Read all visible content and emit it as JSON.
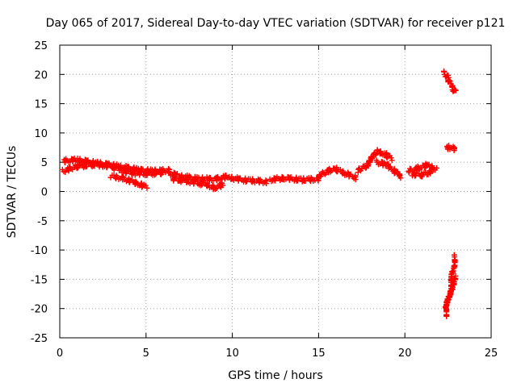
{
  "chart_data": {
    "type": "scatter",
    "title": "Day 065 of 2017, Sidereal Day-to-day VTEC variation (SDTVAR) for receiver p121",
    "xlabel": "GPS time / hours",
    "ylabel": "SDTVAR / TECUs",
    "xlim": [
      0,
      25
    ],
    "ylim": [
      -25,
      25
    ],
    "xticks": [
      "0",
      "5",
      "10",
      "15",
      "20",
      "25"
    ],
    "yticks": [
      "25",
      "20",
      "15",
      "10",
      "5",
      "0",
      "-5",
      "-10",
      "-15",
      "-20",
      "-25"
    ],
    "grid": true,
    "legend": "none",
    "marker": "+",
    "series": [
      {
        "color": "#ff0000",
        "segments": [
          {
            "x": [
              0.2,
              1.0,
              2.0,
              3.0,
              4.0,
              4.8,
              5.5,
              6.3
            ],
            "y": [
              5.2,
              5.4,
              4.9,
              4.5,
              4.0,
              3.6,
              3.5,
              3.6
            ]
          },
          {
            "x": [
              0.2,
              1.0,
              2.0,
              3.0,
              4.0,
              5.0,
              6.0
            ],
            "y": [
              3.5,
              4.3,
              4.6,
              4.3,
              3.2,
              3.0,
              3.2
            ]
          },
          {
            "x": [
              3.0,
              3.6,
              4.3,
              5.0
            ],
            "y": [
              2.6,
              2.3,
              1.6,
              0.8
            ]
          },
          {
            "x": [
              6.3,
              7.0,
              8.0,
              9.0,
              9.8
            ],
            "y": [
              3.2,
              2.6,
              2.2,
              2.1,
              2.6
            ]
          },
          {
            "x": [
              6.5,
              7.5,
              8.5,
              9.0,
              9.5
            ],
            "y": [
              2.2,
              1.7,
              1.2,
              0.6,
              1.3
            ]
          },
          {
            "x": [
              9.8,
              10.5,
              11.5,
              12.0
            ],
            "y": [
              2.4,
              2.0,
              1.8,
              1.6
            ]
          },
          {
            "x": [
              12.2,
              13.0,
              14.0,
              15.0
            ],
            "y": [
              2.0,
              2.3,
              2.0,
              2.1
            ]
          },
          {
            "x": [
              15.0,
              15.5,
              16.0,
              16.6,
              17.2
            ],
            "y": [
              2.5,
              3.5,
              3.8,
              3.0,
              2.3
            ]
          },
          {
            "x": [
              17.3,
              17.8,
              18.4,
              18.8,
              19.2
            ],
            "y": [
              3.5,
              4.5,
              6.8,
              6.5,
              5.6
            ]
          },
          {
            "x": [
              18.4,
              18.9,
              19.4,
              19.8
            ],
            "y": [
              5.0,
              4.6,
              3.5,
              2.5
            ]
          },
          {
            "x": [
              20.2,
              20.8,
              21.3,
              21.8
            ],
            "y": [
              3.5,
              4.0,
              4.5,
              3.8
            ]
          },
          {
            "x": [
              20.4,
              21.0,
              21.6
            ],
            "y": [
              3.0,
              2.8,
              3.5
            ]
          },
          {
            "x": [
              22.3,
              22.5,
              22.7,
              22.9
            ],
            "y": [
              20.3,
              19.3,
              18.2,
              17.0
            ]
          },
          {
            "x": [
              22.4,
              22.6,
              22.8,
              22.9
            ],
            "y": [
              7.4,
              7.6,
              7.3,
              7.2
            ]
          },
          {
            "x": [
              22.35,
              22.55,
              22.75,
              22.9
            ],
            "y": [
              -21.5,
              -18.0,
              -14.5,
              -11.0
            ]
          },
          {
            "x": [
              22.4,
              22.6,
              22.8,
              22.9
            ],
            "y": [
              -20.0,
              -17.5,
              -15.5,
              -14.5
            ]
          }
        ]
      }
    ]
  }
}
